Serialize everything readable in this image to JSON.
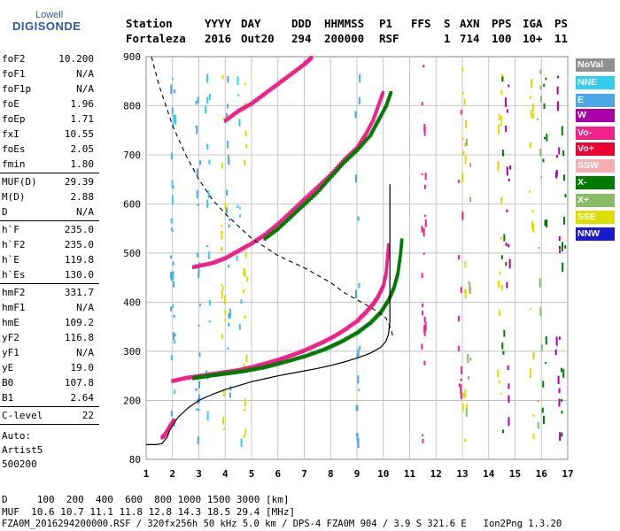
{
  "logo": {
    "line1": "Lowell",
    "line2": "DIGISONDE"
  },
  "header": {
    "labels": [
      "Station",
      "YYYY",
      "DAY",
      "DDD",
      "HHMMSS",
      "P1",
      "FFS",
      "S",
      "AXN",
      "PPS",
      "IGA",
      "PS"
    ],
    "values": [
      "Fortaleza",
      "2016",
      "Out20",
      "294",
      "200000",
      "RSF",
      "1",
      "714",
      "100",
      "10+",
      "11"
    ]
  },
  "params": [
    {
      "name": "foF2",
      "value": "10.200"
    },
    {
      "name": "foF1",
      "value": "N/A"
    },
    {
      "name": "foF1p",
      "value": "N/A"
    },
    {
      "name": "foE",
      "value": "1.96"
    },
    {
      "name": "foEp",
      "value": "1.71"
    },
    {
      "name": "fxI",
      "value": "10.55"
    },
    {
      "name": "foEs",
      "value": "2.05"
    },
    {
      "name": "fmin",
      "value": "1.80"
    },
    {
      "name": "MUF(D)",
      "value": "29.39"
    },
    {
      "name": "M(D)",
      "value": "2.88"
    },
    {
      "name": "D",
      "value": "N/A"
    },
    {
      "name": "h`F",
      "value": "235.0"
    },
    {
      "name": "h`F2",
      "value": "235.0"
    },
    {
      "name": "h`E",
      "value": "119.8"
    },
    {
      "name": "h`Es",
      "value": "130.0"
    },
    {
      "name": "hmF2",
      "value": "331.7"
    },
    {
      "name": "hmF1",
      "value": "N/A"
    },
    {
      "name": "hmE",
      "value": "109.2"
    },
    {
      "name": "yF2",
      "value": "116.8"
    },
    {
      "name": "yF1",
      "value": "N/A"
    },
    {
      "name": "yE",
      "value": "19.0"
    },
    {
      "name": "B0",
      "value": "107.8"
    },
    {
      "name": "B1",
      "value": "2.64"
    },
    {
      "name": "C-level",
      "value": "22"
    }
  ],
  "auto": {
    "label": "Auto:",
    "artist": "Artist5",
    "version": "500200"
  },
  "legend": [
    {
      "label": "NoVal",
      "color": "#909090"
    },
    {
      "label": "NNE",
      "color": "#33ccee"
    },
    {
      "label": "E",
      "color": "#4aa8e8"
    },
    {
      "label": "W",
      "color": "#aa00aa"
    },
    {
      "label": "Vo-",
      "color": "#ee2288"
    },
    {
      "label": "Vo+",
      "color": "#ee0033"
    },
    {
      "label": "SSW",
      "color": "#f4b0b0"
    },
    {
      "label": "X-",
      "color": "#007a00"
    },
    {
      "label": "X+",
      "color": "#88bb66"
    },
    {
      "label": "SSE",
      "color": "#dddd00"
    },
    {
      "label": "NNW",
      "color": "#1a1acc"
    }
  ],
  "footer": {
    "d_row": "D     100  200  400  600  800 1000 1500 3000 [km]",
    "muf_row": "MUF  10.6 10.7 11.1 11.8 12.8 14.3 18.5 29.4 [MHz]",
    "file_row": "FZA0M_2016294200000.RSF / 320fx256h 50 kHz 5.0 km / DPS-4 FZA0M 904 / 3.9 S 321.6 E   Ion2Png 1.3.20"
  },
  "chart_data": {
    "type": "scatter",
    "x_ticks": [
      1,
      2,
      3,
      4,
      5,
      6,
      7,
      8,
      9,
      10,
      11,
      12,
      13,
      14,
      15,
      16,
      17
    ],
    "y_ticks": [
      80,
      200,
      300,
      400,
      500,
      600,
      700,
      800,
      900
    ],
    "xlim": [
      1,
      17
    ],
    "ylim": [
      80,
      900
    ],
    "grid": true,
    "series": [
      {
        "name": "O-trace F2",
        "color": "#ee2288",
        "points": [
          [
            2.0,
            240
          ],
          [
            2.5,
            246
          ],
          [
            3.0,
            250
          ],
          [
            3.5,
            254
          ],
          [
            4.0,
            258
          ],
          [
            4.5,
            262
          ],
          [
            5.0,
            268
          ],
          [
            5.5,
            275
          ],
          [
            6.0,
            283
          ],
          [
            6.5,
            292
          ],
          [
            7.0,
            302
          ],
          [
            7.5,
            314
          ],
          [
            8.0,
            327
          ],
          [
            8.5,
            343
          ],
          [
            9.0,
            362
          ],
          [
            9.3,
            378
          ],
          [
            9.6,
            396
          ],
          [
            9.8,
            412
          ],
          [
            10.0,
            435
          ],
          [
            10.1,
            460
          ],
          [
            10.15,
            490
          ],
          [
            10.2,
            520
          ]
        ]
      },
      {
        "name": "X-trace F2",
        "color": "#007a00",
        "points": [
          [
            2.8,
            246
          ],
          [
            3.3,
            250
          ],
          [
            4.0,
            255
          ],
          [
            4.7,
            260
          ],
          [
            5.5,
            268
          ],
          [
            6.2,
            278
          ],
          [
            7.0,
            290
          ],
          [
            7.8,
            305
          ],
          [
            8.4,
            320
          ],
          [
            9.0,
            338
          ],
          [
            9.5,
            358
          ],
          [
            9.9,
            380
          ],
          [
            10.2,
            405
          ],
          [
            10.4,
            430
          ],
          [
            10.55,
            460
          ],
          [
            10.65,
            500
          ],
          [
            10.7,
            530
          ]
        ]
      },
      {
        "name": "O-trace multihop",
        "color": "#ee2288",
        "points": [
          [
            2.8,
            472
          ],
          [
            3.5,
            480
          ],
          [
            4.0,
            490
          ],
          [
            4.5,
            505
          ],
          [
            5.0,
            520
          ],
          [
            5.5,
            538
          ],
          [
            6.0,
            560
          ],
          [
            6.5,
            585
          ],
          [
            7.0,
            610
          ],
          [
            7.5,
            635
          ],
          [
            8.0,
            660
          ],
          [
            8.5,
            690
          ],
          [
            9.0,
            715
          ],
          [
            9.3,
            740
          ],
          [
            9.6,
            770
          ],
          [
            9.8,
            800
          ],
          [
            10.0,
            830
          ]
        ]
      },
      {
        "name": "X-trace multihop",
        "color": "#007a00",
        "points": [
          [
            5.5,
            530
          ],
          [
            6.0,
            550
          ],
          [
            6.5,
            575
          ],
          [
            7.0,
            600
          ],
          [
            7.5,
            625
          ],
          [
            8.0,
            655
          ],
          [
            8.5,
            685
          ],
          [
            9.0,
            710
          ],
          [
            9.5,
            740
          ],
          [
            9.8,
            770
          ],
          [
            10.1,
            800
          ],
          [
            10.3,
            830
          ]
        ]
      },
      {
        "name": "Es / E layer",
        "color": "#ee2288",
        "points": [
          [
            1.6,
            125
          ],
          [
            1.7,
            130
          ],
          [
            1.8,
            138
          ],
          [
            1.9,
            148
          ],
          [
            2.0,
            155
          ],
          [
            2.05,
            160
          ]
        ]
      },
      {
        "name": "Third hop",
        "color": "#ee2288",
        "points": [
          [
            4.0,
            770
          ],
          [
            4.5,
            790
          ],
          [
            5.0,
            805
          ],
          [
            5.5,
            825
          ],
          [
            6.0,
            845
          ],
          [
            6.5,
            865
          ],
          [
            7.0,
            885
          ],
          [
            7.3,
            900
          ]
        ]
      }
    ],
    "profile": {
      "color": "#000000",
      "points": [
        [
          1.0,
          110
        ],
        [
          1.4,
          110
        ],
        [
          1.6,
          112
        ],
        [
          1.8,
          125
        ],
        [
          1.9,
          140
        ],
        [
          2.2,
          165
        ],
        [
          2.6,
          185
        ],
        [
          3.0,
          200
        ],
        [
          3.5,
          212
        ],
        [
          4.0,
          222
        ],
        [
          4.5,
          230
        ],
        [
          5.0,
          238
        ],
        [
          5.5,
          244
        ],
        [
          6.0,
          250
        ],
        [
          6.5,
          255
        ],
        [
          7.0,
          260
        ],
        [
          7.5,
          265
        ],
        [
          8.0,
          271
        ],
        [
          8.5,
          278
        ],
        [
          9.0,
          286
        ],
        [
          9.5,
          296
        ],
        [
          9.9,
          308
        ],
        [
          10.1,
          320
        ],
        [
          10.2,
          335
        ],
        [
          10.25,
          360
        ],
        [
          10.25,
          400
        ],
        [
          10.25,
          450
        ],
        [
          10.25,
          500
        ],
        [
          10.25,
          550
        ],
        [
          10.25,
          600
        ],
        [
          10.25,
          640
        ]
      ]
    },
    "muf_curve": {
      "color": "#000000",
      "points": [
        [
          1.2,
          900
        ],
        [
          1.5,
          840
        ],
        [
          2.0,
          760
        ],
        [
          2.5,
          700
        ],
        [
          3.0,
          650
        ],
        [
          3.5,
          610
        ],
        [
          4.0,
          580
        ],
        [
          5.0,
          530
        ],
        [
          6.0,
          495
        ],
        [
          7.0,
          470
        ],
        [
          8.0,
          440
        ],
        [
          8.5,
          420
        ],
        [
          9.0,
          405
        ],
        [
          9.5,
          390
        ],
        [
          9.8,
          380
        ],
        [
          10.1,
          368
        ],
        [
          10.3,
          345
        ],
        [
          10.35,
          332
        ]
      ]
    },
    "scatter_columns": [
      {
        "x": 1.98,
        "color": "#4aa8e8"
      },
      {
        "x": 2.0,
        "color": "#33ccee"
      },
      {
        "x": 2.95,
        "color": "#4aa8e8"
      },
      {
        "x": 3.3,
        "color": "#33ccee"
      },
      {
        "x": 3.9,
        "color": "#dddd00"
      },
      {
        "x": 4.1,
        "color": "#4aa8e8"
      },
      {
        "x": 4.5,
        "color": "#33ccee"
      },
      {
        "x": 4.75,
        "color": "#dddd00"
      },
      {
        "x": 9.0,
        "color": "#4aa8e8"
      },
      {
        "x": 11.5,
        "color": "#ee2288"
      },
      {
        "x": 12.9,
        "color": "#ee2288"
      },
      {
        "x": 13.05,
        "color": "#dddd00"
      },
      {
        "x": 13.2,
        "color": "#88bb66"
      },
      {
        "x": 14.4,
        "color": "#dddd00"
      },
      {
        "x": 14.55,
        "color": "#007a00"
      },
      {
        "x": 14.7,
        "color": "#aa00aa"
      },
      {
        "x": 15.6,
        "color": "#dddd00"
      },
      {
        "x": 15.9,
        "color": "#88bb66"
      },
      {
        "x": 16.1,
        "color": "#007a00"
      },
      {
        "x": 16.6,
        "color": "#aa00aa"
      },
      {
        "x": 16.8,
        "color": "#007a00"
      }
    ]
  }
}
